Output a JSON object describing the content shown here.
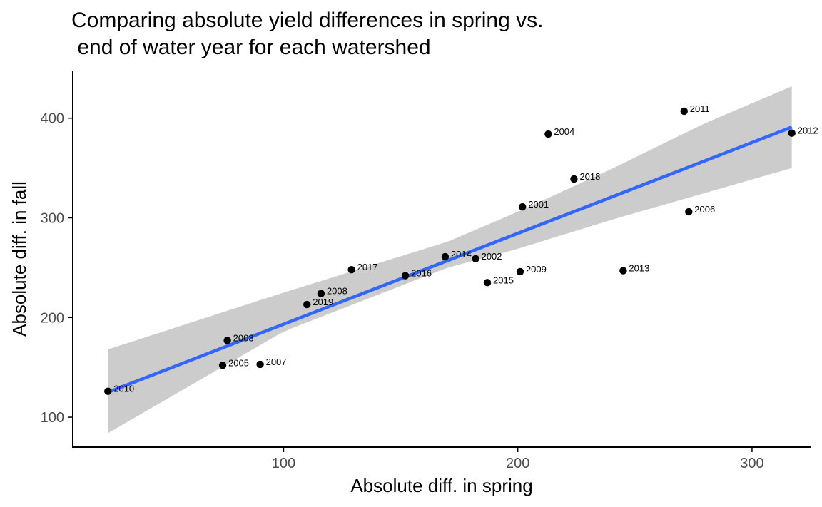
{
  "chart_data": {
    "type": "scatter",
    "title_lines": [
      "Comparing absolute yield differences in spring vs.",
      " end of water year for each watershed"
    ],
    "xlabel": "Absolute diff. in spring",
    "ylabel": "Absolute diff. in fall",
    "xlim": [
      10,
      325
    ],
    "ylim": [
      70,
      447
    ],
    "xticks": [
      100,
      200,
      300
    ],
    "yticks": [
      100,
      200,
      300,
      400
    ],
    "grid": false,
    "points": [
      {
        "label": "2001",
        "x": 202,
        "y": 311
      },
      {
        "label": "2002",
        "x": 182,
        "y": 259
      },
      {
        "label": "2003",
        "x": 76,
        "y": 177
      },
      {
        "label": "2004",
        "x": 213,
        "y": 384
      },
      {
        "label": "2005",
        "x": 74,
        "y": 152
      },
      {
        "label": "2006",
        "x": 273,
        "y": 306
      },
      {
        "label": "2007",
        "x": 90,
        "y": 153
      },
      {
        "label": "2008",
        "x": 116,
        "y": 224
      },
      {
        "label": "2009",
        "x": 201,
        "y": 246
      },
      {
        "label": "2010",
        "x": 25,
        "y": 126
      },
      {
        "label": "2011",
        "x": 271,
        "y": 407
      },
      {
        "label": "2012",
        "x": 317,
        "y": 385
      },
      {
        "label": "2013",
        "x": 245,
        "y": 247
      },
      {
        "label": "2014",
        "x": 169,
        "y": 261
      },
      {
        "label": "2015",
        "x": 187,
        "y": 235
      },
      {
        "label": "2016",
        "x": 152,
        "y": 242
      },
      {
        "label": "2017",
        "x": 129,
        "y": 248
      },
      {
        "label": "2018",
        "x": 224,
        "y": 339
      },
      {
        "label": "2019",
        "x": 110,
        "y": 213
      }
    ],
    "fit": {
      "method": "linear",
      "x": [
        25,
        317
      ],
      "y": [
        125,
        391
      ],
      "ci_upper_x": [
        25,
        100,
        170,
        200,
        240,
        280,
        317
      ],
      "ci_upper_y": [
        168,
        225,
        276,
        306,
        349,
        395,
        432
      ],
      "ci_lower_x": [
        25,
        100,
        170,
        200,
        240,
        280,
        317
      ],
      "ci_lower_y": [
        84,
        186,
        250,
        269,
        298,
        325,
        350
      ]
    },
    "colors": {
      "points": "#000000",
      "fit_line": "#3366FF",
      "ribbon": "#cccccc",
      "axis": "#000000",
      "tick_text": "#4d4d4d"
    }
  }
}
